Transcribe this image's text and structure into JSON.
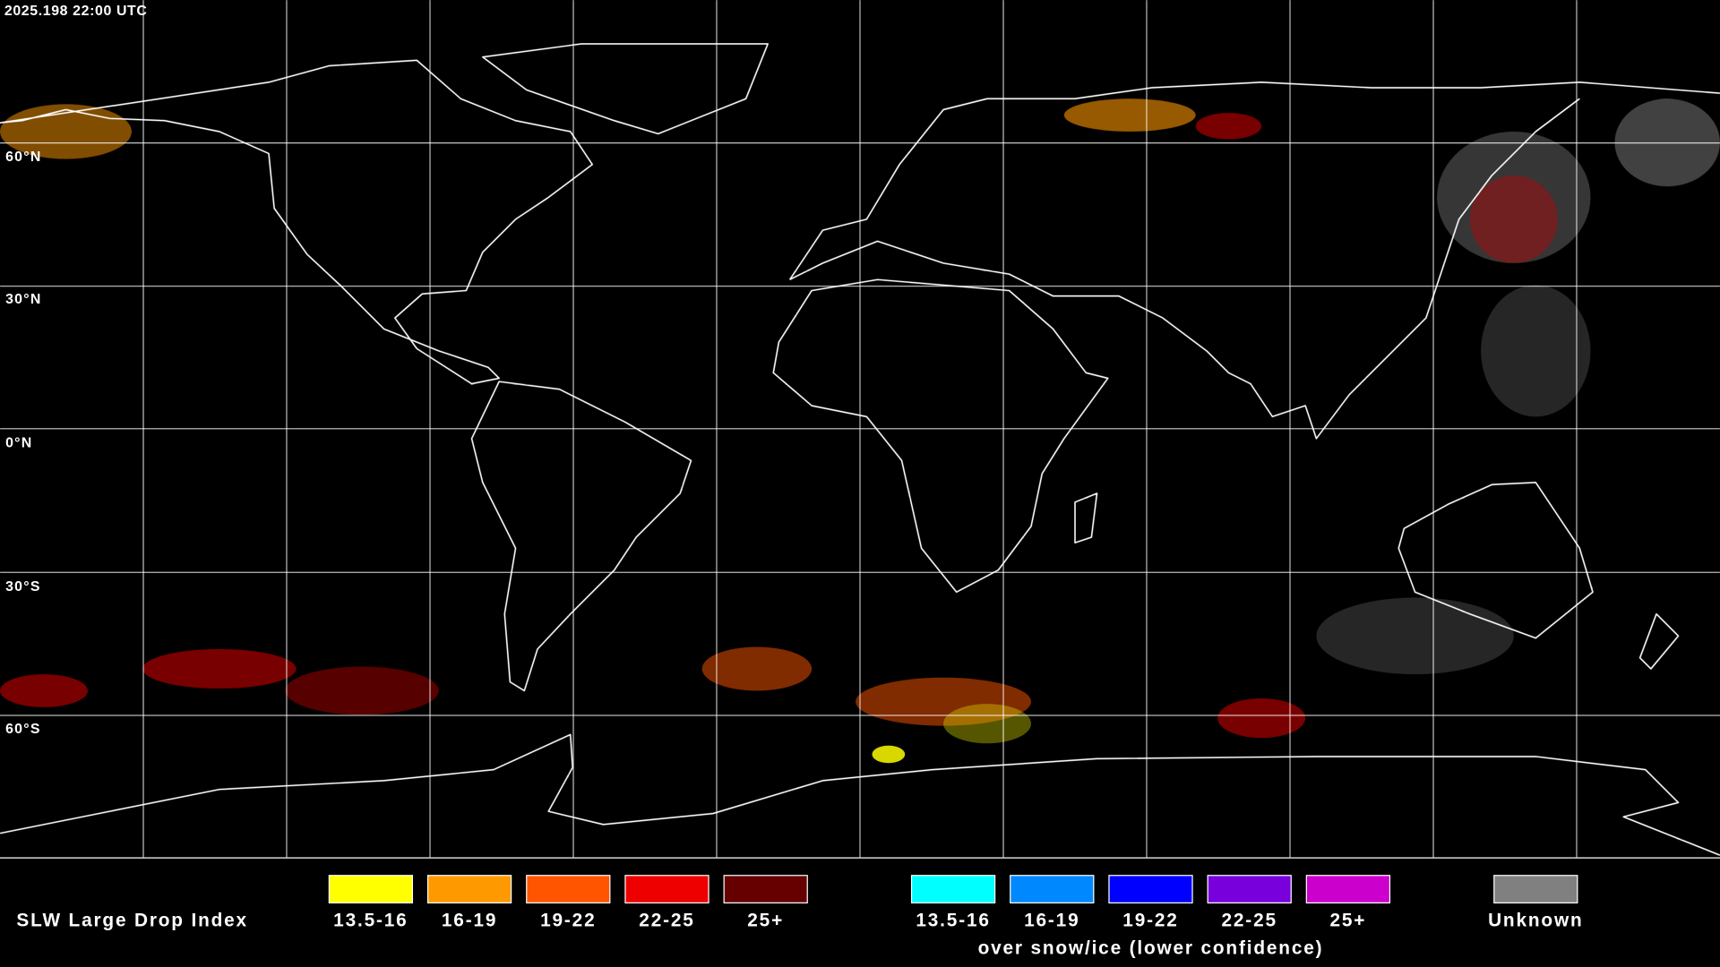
{
  "header": {
    "timestamp": "2025.198 22:00 UTC"
  },
  "map": {
    "latitude_labels": [
      "60°N",
      "30°N",
      "0°N",
      "30°S",
      "60°S"
    ]
  },
  "legend": {
    "title": "SLW Large Drop Index",
    "groups": [
      {
        "items": [
          {
            "label": "13.5-16",
            "color": "#ffff00"
          },
          {
            "label": "16-19",
            "color": "#ff9900"
          },
          {
            "label": "19-22",
            "color": "#ff5500"
          },
          {
            "label": "22-25",
            "color": "#ee0000"
          },
          {
            "label": "25+",
            "color": "#660000"
          }
        ]
      },
      {
        "items": [
          {
            "label": "13.5-16",
            "color": "#00ffff"
          },
          {
            "label": "16-19",
            "color": "#0088ff"
          },
          {
            "label": "19-22",
            "color": "#0000ff"
          },
          {
            "label": "22-25",
            "color": "#7700dd"
          },
          {
            "label": "25+",
            "color": "#cc00cc"
          }
        ],
        "caption": "over snow/ice (lower confidence)"
      },
      {
        "items": [
          {
            "label": "Unknown",
            "color": "#808080"
          }
        ]
      }
    ]
  }
}
